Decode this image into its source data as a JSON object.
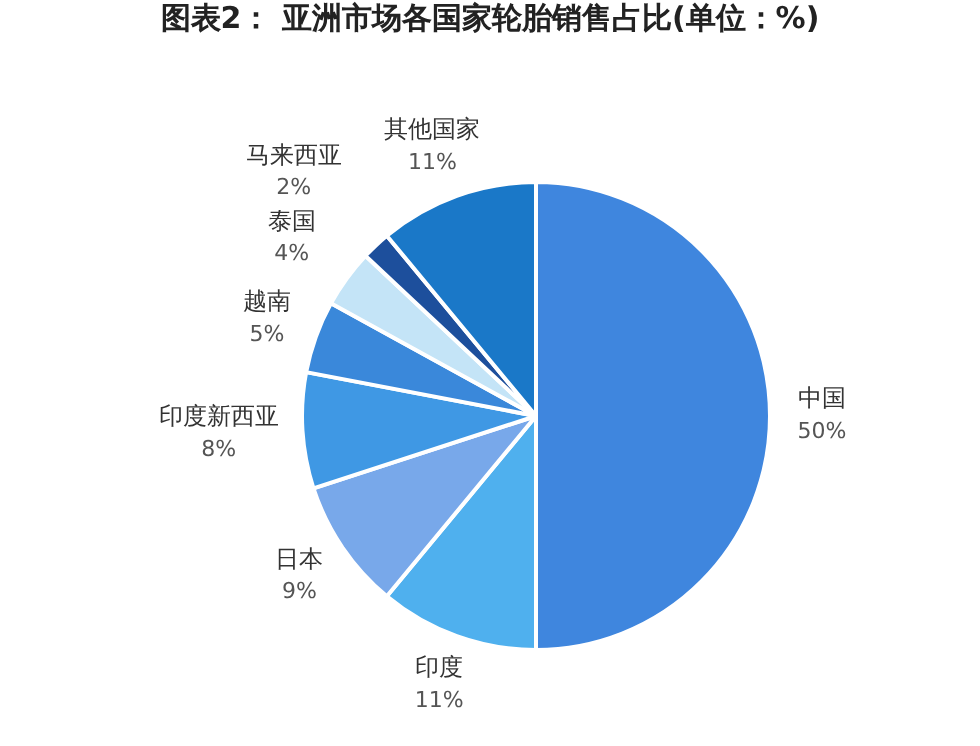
{
  "chart_data": {
    "type": "pie",
    "title": "图表2： 亚洲市场各国家轮胎销售占比(单位：%)",
    "categories": [
      "中国",
      "印度",
      "日本",
      "印度新西亚",
      "越南",
      "泰国",
      "马来西亚",
      "其他国家"
    ],
    "values": [
      50,
      11,
      9,
      8,
      5,
      4,
      2,
      11
    ],
    "value_labels": [
      "50%",
      "11%",
      "9%",
      "8%",
      "5%",
      "4%",
      "2%",
      "11%"
    ],
    "colors": [
      "#3f86de",
      "#4fb0ee",
      "#78a8ea",
      "#3f98e4",
      "#3a88da",
      "#c4e4f7",
      "#1d4f9c",
      "#1a78c8"
    ],
    "legend": false
  }
}
